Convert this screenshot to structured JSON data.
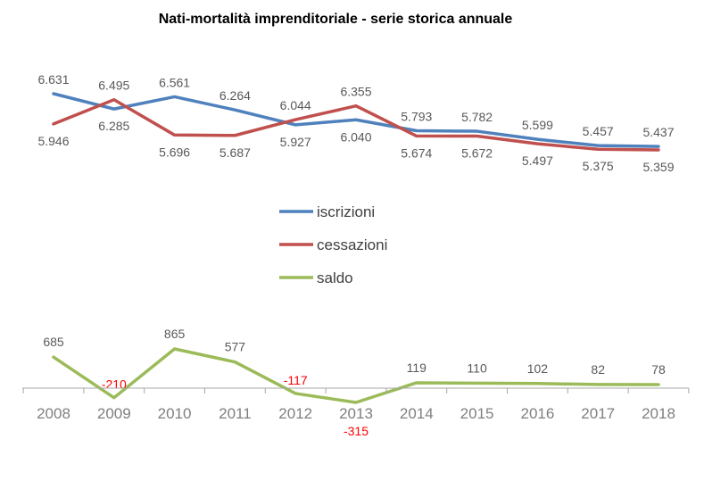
{
  "chart_data": {
    "type": "line",
    "title": "Nati-mortalità imprenditoriale - serie storica annuale",
    "categories": [
      "2008",
      "2009",
      "2010",
      "2011",
      "2012",
      "2013",
      "2014",
      "2015",
      "2016",
      "2017",
      "2018"
    ],
    "series": [
      {
        "name": "iscrizioni",
        "color": "#4f81bd",
        "values": [
          6631,
          6285,
          6561,
          6264,
          5927,
          6040,
          5793,
          5782,
          5599,
          5457,
          5437
        ],
        "labels": [
          "6.631",
          "6.285",
          "6.561",
          "6.264",
          "5.927",
          "6.040",
          "5.793",
          "5.782",
          "5.599",
          "5.457",
          "5.437"
        ]
      },
      {
        "name": "cessazioni",
        "color": "#c0504d",
        "values": [
          5946,
          6495,
          5696,
          5687,
          6044,
          6355,
          5674,
          5672,
          5497,
          5375,
          5359
        ],
        "labels": [
          "5.946",
          "6.495",
          "5.696",
          "5.687",
          "6.044",
          "6.355",
          "5.674",
          "5.672",
          "5.497",
          "5.375",
          "5.359"
        ]
      },
      {
        "name": "saldo",
        "color": "#9bbb59",
        "values": [
          685,
          -210,
          865,
          577,
          -117,
          -315,
          119,
          110,
          102,
          82,
          78
        ],
        "labels": [
          "685",
          "-210",
          "865",
          "577",
          "-117",
          "-315",
          "119",
          "110",
          "102",
          "82",
          "78"
        ]
      }
    ],
    "grid": false,
    "legend_placement": "center",
    "negative_label_color": "#ff0000"
  }
}
